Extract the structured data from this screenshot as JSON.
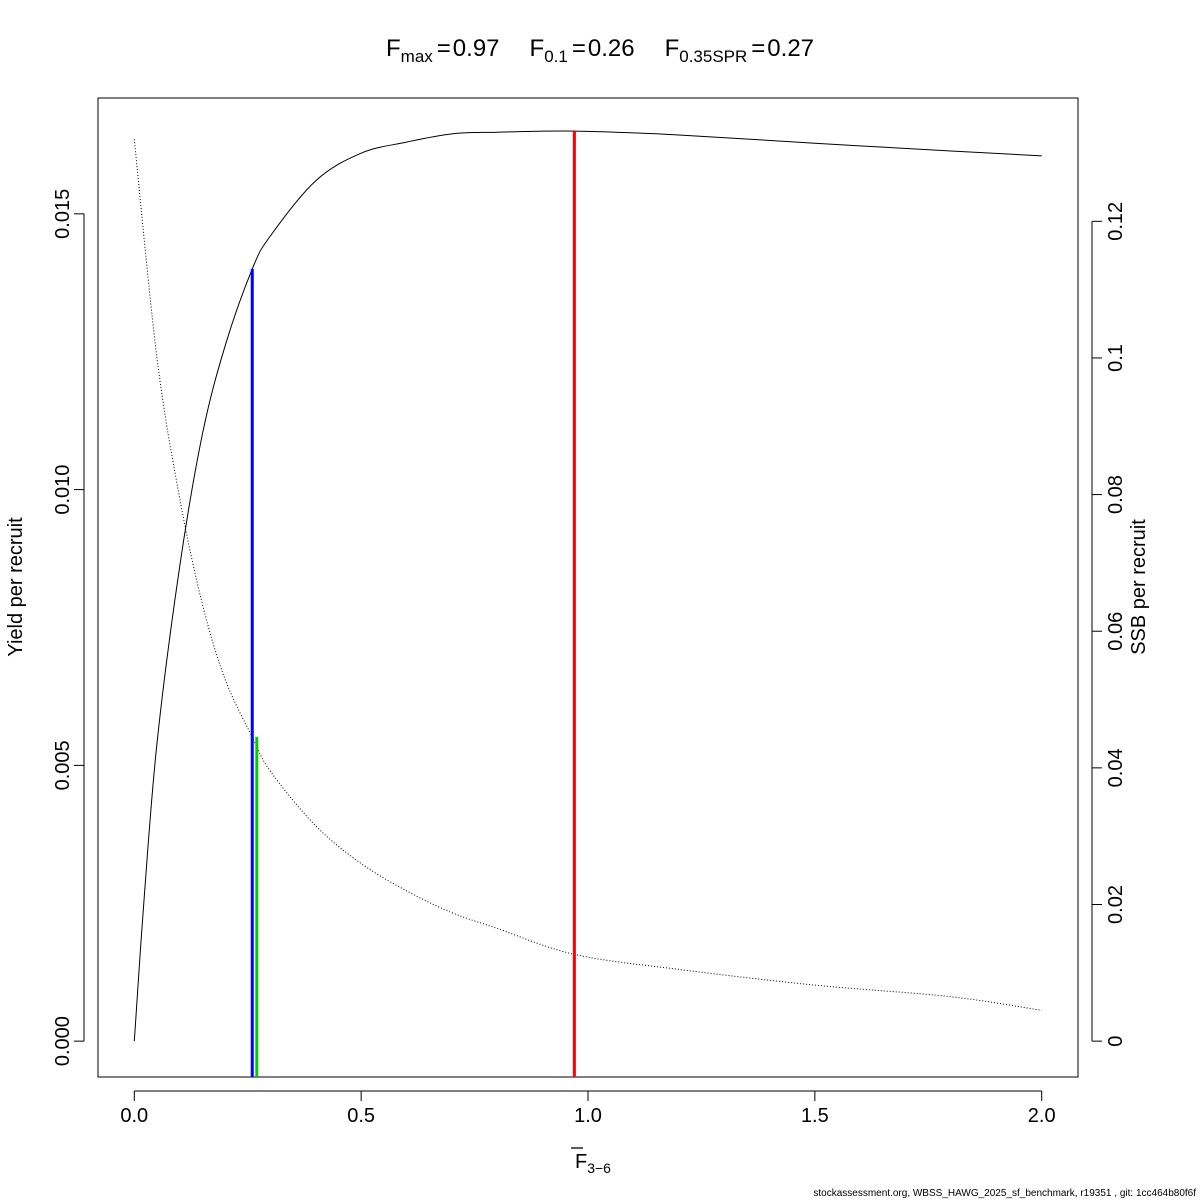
{
  "chart_data": {
    "type": "line",
    "title": {
      "fmax": {
        "sym": "F",
        "sub": "max",
        "eq": "=",
        "val": "0.97"
      },
      "f01": {
        "sym": "F",
        "sub": "0.1",
        "eq": "=",
        "val": "0.26"
      },
      "fspr": {
        "sym": "F",
        "sub": "0.35SPR",
        "eq": "=",
        "val": "0.27"
      }
    },
    "xlabel": {
      "main": "F",
      "sub": "3−6"
    },
    "ylabel_left": "Yield per recruit",
    "ylabel_right": "SSB per recruit",
    "xlim": [
      -0.08,
      2.08
    ],
    "ylim_left": [
      -0.00065,
      0.0171
    ],
    "ylim_right": [
      -0.00525,
      0.13805
    ],
    "x_ticks": [
      {
        "value": 0.0,
        "label": "0.0"
      },
      {
        "value": 0.5,
        "label": "0.5"
      },
      {
        "value": 1.0,
        "label": "1.0"
      },
      {
        "value": 1.5,
        "label": "1.5"
      },
      {
        "value": 2.0,
        "label": "2.0"
      }
    ],
    "y_left_ticks": [
      {
        "value": 0.0,
        "label": "0.000"
      },
      {
        "value": 0.005,
        "label": "0.005"
      },
      {
        "value": 0.01,
        "label": "0.010"
      },
      {
        "value": 0.015,
        "label": "0.015"
      }
    ],
    "y_right_ticks": [
      {
        "value": 0,
        "label": "0"
      },
      {
        "value": 0.02,
        "label": "0.02"
      },
      {
        "value": 0.04,
        "label": "0.04"
      },
      {
        "value": 0.06,
        "label": "0.06"
      },
      {
        "value": 0.08,
        "label": "0.08"
      },
      {
        "value": 0.1,
        "label": "0.1"
      },
      {
        "value": 0.12,
        "label": "0.12"
      }
    ],
    "series": [
      {
        "axis": "left",
        "style": "solid",
        "color": "#000000",
        "x": [
          0,
          0.02,
          0.05,
          0.1,
          0.15,
          0.2,
          0.26,
          0.3,
          0.4,
          0.5,
          0.6,
          0.7,
          0.8,
          0.97,
          1.2,
          1.5,
          1.8,
          2.0
        ],
        "y": [
          0,
          0.0024,
          0.0054,
          0.0086,
          0.011,
          0.0126,
          0.014,
          0.0146,
          0.0156,
          0.0161,
          0.0163,
          0.01645,
          0.01648,
          0.0165,
          0.01643,
          0.01628,
          0.01614,
          0.01605
        ]
      },
      {
        "axis": "right",
        "style": "dotted",
        "color": "#000000",
        "x": [
          0,
          0.05,
          0.1,
          0.15,
          0.2,
          0.26,
          0.3,
          0.4,
          0.5,
          0.6,
          0.7,
          0.8,
          0.97,
          1.2,
          1.5,
          1.8,
          2.0
        ],
        "y": [
          0.132,
          0.1,
          0.0795,
          0.064,
          0.053,
          0.0445,
          0.0395,
          0.0315,
          0.026,
          0.022,
          0.0188,
          0.0165,
          0.0127,
          0.0105,
          0.0082,
          0.0065,
          0.0045
        ]
      }
    ],
    "reference_lines": [
      {
        "x": 0.97,
        "axis": "left",
        "y_top": 0.0165,
        "color": "#ff0000"
      },
      {
        "x": 0.26,
        "axis": "left",
        "y_top": 0.014,
        "color": "#0000ff"
      },
      {
        "x": 0.27,
        "axis": "right",
        "y_top": 0.0445,
        "color": "#00cc00"
      }
    ]
  },
  "footer": "stockassessment.org, WBSS_HAWG_2025_sf_benchmark, r19351 , git: 1cc464b80f6f"
}
